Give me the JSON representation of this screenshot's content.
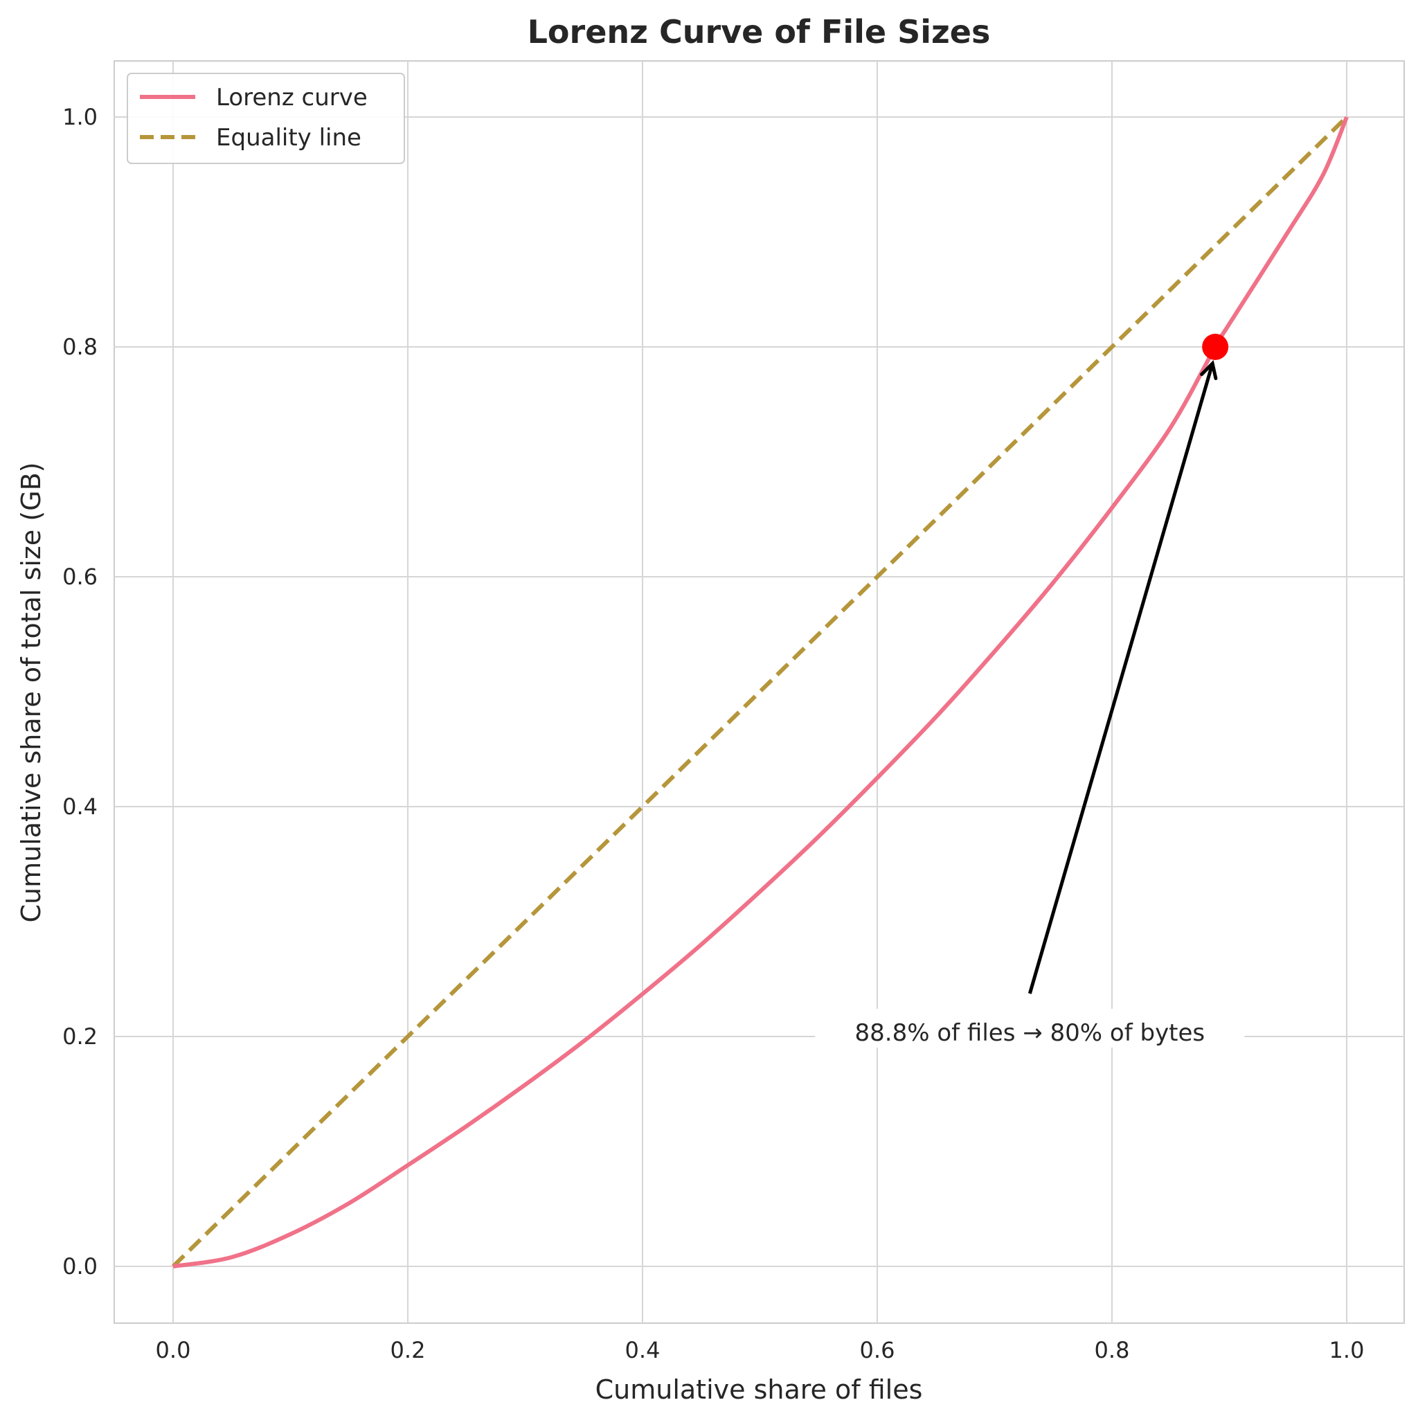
{
  "chart_data": {
    "type": "line",
    "title": "Lorenz Curve of File Sizes",
    "xlabel": "Cumulative share of files",
    "ylabel": "Cumulative share of total size (GB)",
    "xlim": [
      -0.05,
      1.05
    ],
    "ylim": [
      -0.05,
      1.05
    ],
    "grid": true,
    "legend_position": "upper-left",
    "x_ticks": [
      "0.0",
      "0.2",
      "0.4",
      "0.6",
      "0.8",
      "1.0"
    ],
    "y_ticks": [
      "0.0",
      "0.2",
      "0.4",
      "0.6",
      "0.8",
      "1.0"
    ],
    "series": [
      {
        "name": "Lorenz curve",
        "style": "solid",
        "color": "#f07289",
        "points": [
          [
            0.0,
            0.0
          ],
          [
            0.05,
            0.008
          ],
          [
            0.1,
            0.028
          ],
          [
            0.15,
            0.055
          ],
          [
            0.2,
            0.088
          ],
          [
            0.25,
            0.122
          ],
          [
            0.3,
            0.158
          ],
          [
            0.35,
            0.196
          ],
          [
            0.4,
            0.237
          ],
          [
            0.45,
            0.28
          ],
          [
            0.5,
            0.326
          ],
          [
            0.55,
            0.374
          ],
          [
            0.6,
            0.425
          ],
          [
            0.65,
            0.478
          ],
          [
            0.7,
            0.535
          ],
          [
            0.75,
            0.595
          ],
          [
            0.8,
            0.66
          ],
          [
            0.85,
            0.73
          ],
          [
            0.888,
            0.8
          ],
          [
            0.9,
            0.82
          ],
          [
            0.95,
            0.9
          ],
          [
            0.98,
            0.95
          ],
          [
            1.0,
            1.0
          ]
        ]
      },
      {
        "name": "Equality line",
        "style": "dashed",
        "color": "#b5963a",
        "points": [
          [
            0.0,
            0.0
          ],
          [
            1.0,
            1.0
          ]
        ]
      }
    ],
    "highlight_point": {
      "x": 0.888,
      "y": 0.8,
      "color": "#ff0000"
    },
    "annotation": {
      "text": "88.8% of files → 80% of bytes",
      "text_x": 0.73,
      "text_y": 0.2,
      "arrow_to": [
        0.888,
        0.8
      ]
    }
  }
}
